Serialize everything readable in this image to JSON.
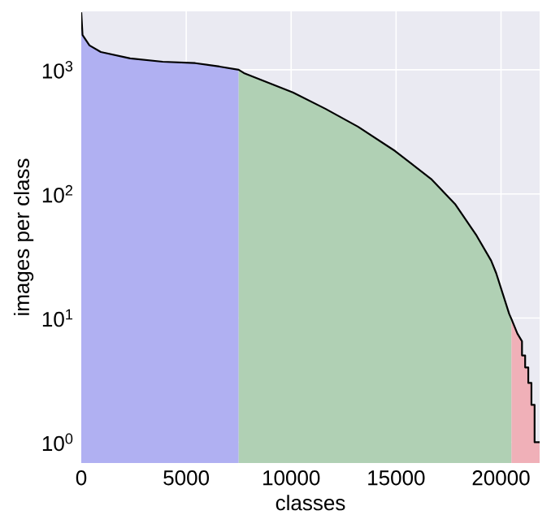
{
  "chart_data": {
    "type": "line",
    "xlabel": "classes",
    "ylabel": "images per class",
    "log": "y",
    "grid": true,
    "xlim": [
      0,
      21840
    ],
    "ylim": [
      0.68,
      2950
    ],
    "xticks": [
      0,
      5000,
      10000,
      15000,
      20000
    ],
    "yticks": [
      {
        "value": 1,
        "label": "10$^{0}$"
      },
      {
        "value": 10,
        "label": "10$^{1}$"
      },
      {
        "value": 100,
        "label": "10$^{2}$"
      },
      {
        "value": 1000,
        "label": "10$^{3}$"
      }
    ],
    "series": [
      {
        "type": "area",
        "color": "#b0b0f2",
        "x": [
          0,
          60,
          390,
          930,
          2330,
          3880,
          5430,
          6590,
          7500
        ],
        "values": [
          2900,
          1900,
          1570,
          1390,
          1235,
          1160,
          1130,
          1060,
          1000
        ]
      },
      {
        "type": "area",
        "color": "#b0d0b4",
        "x": [
          7500,
          7750,
          10080,
          11630,
          13180,
          14960,
          16670,
          17830,
          18840,
          19530,
          19770,
          20390,
          20500
        ],
        "values": [
          1000,
          940,
          657,
          485,
          348,
          221,
          132,
          82,
          46,
          29,
          23,
          10.8,
          9.8
        ]
      },
      {
        "type": "area",
        "color": "#f0b0b8",
        "x": [
          20500,
          20780,
          21000,
          21000,
          21150,
          21150,
          21300,
          21300,
          21450,
          21450,
          21600,
          21600,
          21840
        ],
        "values": [
          9.8,
          7.5,
          6.5,
          5,
          5,
          4,
          4,
          3,
          3,
          2,
          2,
          1,
          1
        ]
      },
      {
        "color": "#000000",
        "x": [
          0,
          60,
          390,
          930,
          2330,
          3880,
          5430,
          6590,
          7500,
          7750,
          10080,
          11630,
          13180,
          14960,
          16670,
          17830,
          18840,
          19530,
          19770,
          20390,
          20500,
          20780,
          21000,
          21000,
          21150,
          21150,
          21300,
          21300,
          21450,
          21450,
          21600,
          21600,
          21840
        ],
        "values": [
          2900,
          1900,
          1570,
          1390,
          1235,
          1160,
          1130,
          1060,
          1000,
          940,
          657,
          485,
          348,
          221,
          132,
          82,
          46,
          29,
          23,
          10.8,
          9.8,
          7.5,
          6.5,
          5,
          5,
          4,
          4,
          3,
          3,
          2,
          2,
          1,
          1
        ]
      }
    ]
  }
}
